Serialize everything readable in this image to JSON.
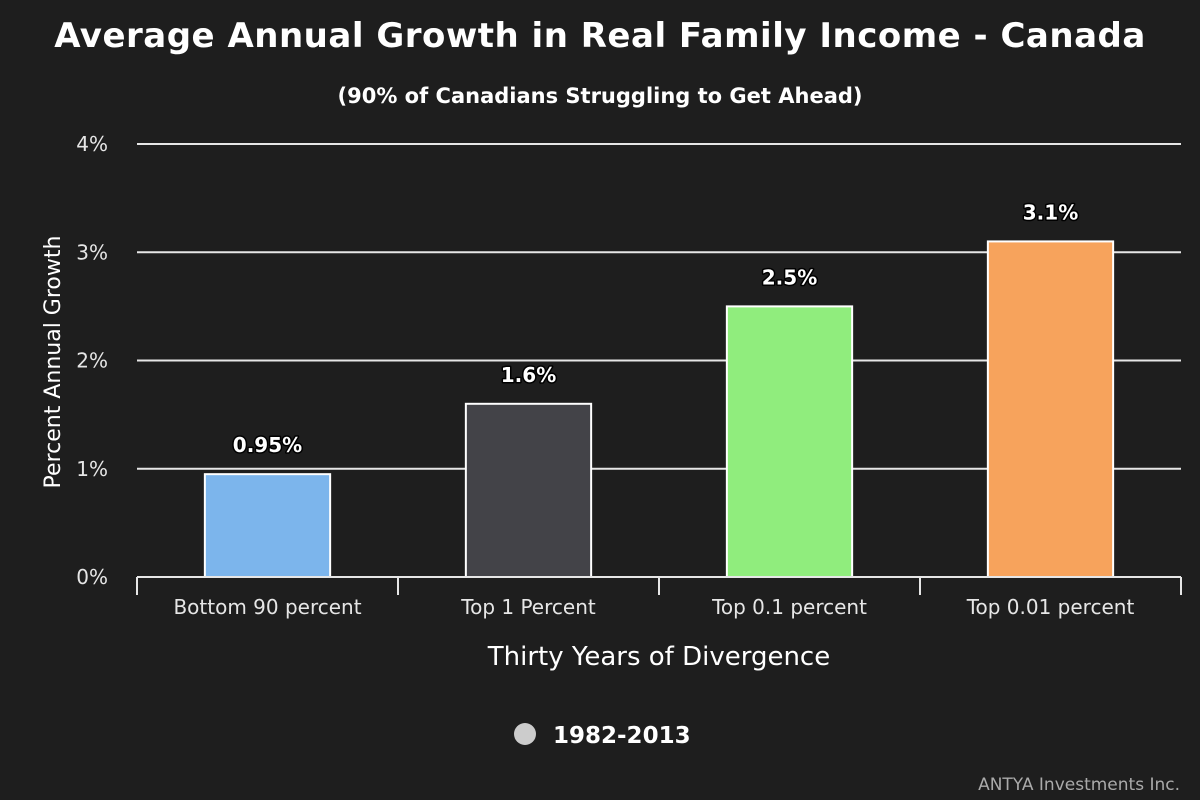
{
  "title": "Average Annual Growth in Real Family Income - Canada",
  "subtitle": "(90% of Canadians Struggling to Get Ahead)",
  "credit": "ANTYA Investments Inc.",
  "chart_data": {
    "type": "bar",
    "title": "Average Annual Growth in Real Family Income - Canada",
    "subtitle": "(90% of Canadians Struggling to Get Ahead)",
    "xlabel": "Thirty Years of Divergence",
    "ylabel": "Percent Annual Growth",
    "ylim": [
      0,
      4
    ],
    "yticks": [
      {
        "value": 0,
        "label": "0%"
      },
      {
        "value": 1,
        "label": "1%"
      },
      {
        "value": 2,
        "label": "2%"
      },
      {
        "value": 3,
        "label": "3%"
      },
      {
        "value": 4,
        "label": "4%"
      }
    ],
    "categories": [
      "Bottom 90 percent",
      "Top 1 Percent",
      "Top 0.1 percent",
      "Top 0.01 percent"
    ],
    "series": [
      {
        "name": "1982-2013",
        "values": [
          0.95,
          1.6,
          2.5,
          3.1
        ],
        "labels": [
          "0.95%",
          "1.6%",
          "2.5%",
          "3.1%"
        ],
        "colors": [
          "#7cb5ec",
          "#434348",
          "#90ed7d",
          "#f7a35c"
        ]
      }
    ],
    "legend_color": "#cccccc",
    "grid": true,
    "legend": "bottom-center"
  }
}
